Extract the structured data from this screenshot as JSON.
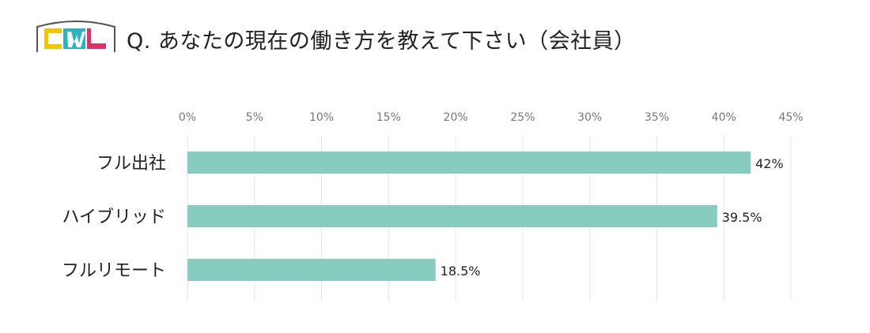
{
  "logo": {
    "text": "CWL"
  },
  "header": {
    "title": "Q. あなたの現在の働き方を教えて下さい（会社員）"
  },
  "colors": {
    "bar": "#88ccbf",
    "grid": "#e6e6e6",
    "logo_c": "#f5c400",
    "logo_w": "#2bb3c0",
    "logo_l": "#e0306a"
  },
  "chart_data": {
    "type": "bar",
    "orientation": "horizontal",
    "title": "",
    "xlabel": "",
    "ylabel": "",
    "xlim": [
      0,
      45
    ],
    "x_ticks": [
      0,
      5,
      10,
      15,
      20,
      25,
      30,
      35,
      40,
      45
    ],
    "tick_labels": [
      "0%",
      "5%",
      "10%",
      "15%",
      "20%",
      "25%",
      "30%",
      "35%",
      "40%",
      "45%"
    ],
    "tick_position": "top",
    "grid": true,
    "legend": "none",
    "categories": [
      "フル出社",
      "ハイブリッド",
      "フルリモート"
    ],
    "values": [
      42,
      39.5,
      18.5
    ],
    "value_labels": [
      "42%",
      "39.5%",
      "18.5%"
    ]
  }
}
